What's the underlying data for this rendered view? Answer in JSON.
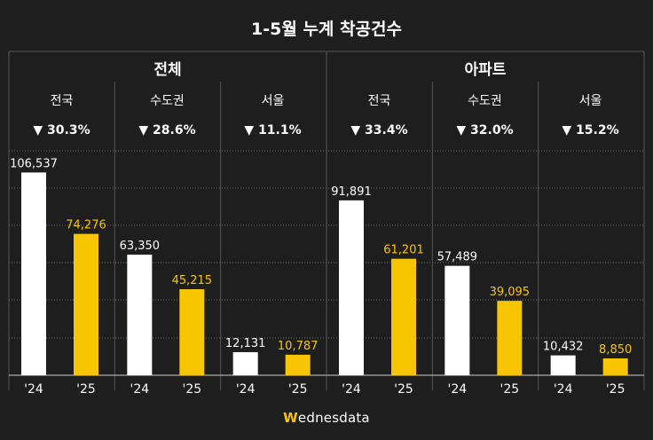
{
  "title": "1-5월 누계 착공건수",
  "brand": {
    "first_letter": "W",
    "rest": "ednesdata"
  },
  "colors": {
    "background": "#1e1e1e",
    "bar_2024": "#ffffff",
    "bar_2025": "#f7c600",
    "label_2024": "#ffffff",
    "label_2025": "#f7c600",
    "gridline": "#666666",
    "divider": "#555555"
  },
  "groups": [
    {
      "name": "전체",
      "regions": [
        {
          "label": "전국",
          "change": "▼ 30.3%"
        },
        {
          "label": "수도권",
          "change": "▼ 28.6%"
        },
        {
          "label": "서울",
          "change": "▼ 11.1%"
        }
      ]
    },
    {
      "name": "아파트",
      "regions": [
        {
          "label": "전국",
          "change": "▼ 33.4%"
        },
        {
          "label": "수도권",
          "change": "▼ 32.0%"
        },
        {
          "label": "서울",
          "change": "▼ 15.2%"
        }
      ]
    }
  ],
  "chart_data": {
    "type": "bar",
    "title": "1-5월 누계 착공건수",
    "xlabel": "",
    "ylabel": "",
    "ylim": [
      0,
      110000
    ],
    "grid": true,
    "categories": [
      "전체 전국",
      "전체 수도권",
      "전체 서울",
      "아파트 전국",
      "아파트 수도권",
      "아파트 서울"
    ],
    "series": [
      {
        "name": "'24",
        "values": [
          106537,
          63350,
          12131,
          91891,
          57489,
          10432
        ],
        "value_labels": [
          "106,537",
          "63,350",
          "12,131",
          "91,891",
          "57,489",
          "10,432"
        ]
      },
      {
        "name": "'25",
        "values": [
          74276,
          45215,
          10787,
          61201,
          39095,
          8850
        ],
        "value_labels": [
          "74,276",
          "45,215",
          "10,787",
          "61,201",
          "39,095",
          "8,850"
        ]
      }
    ]
  }
}
